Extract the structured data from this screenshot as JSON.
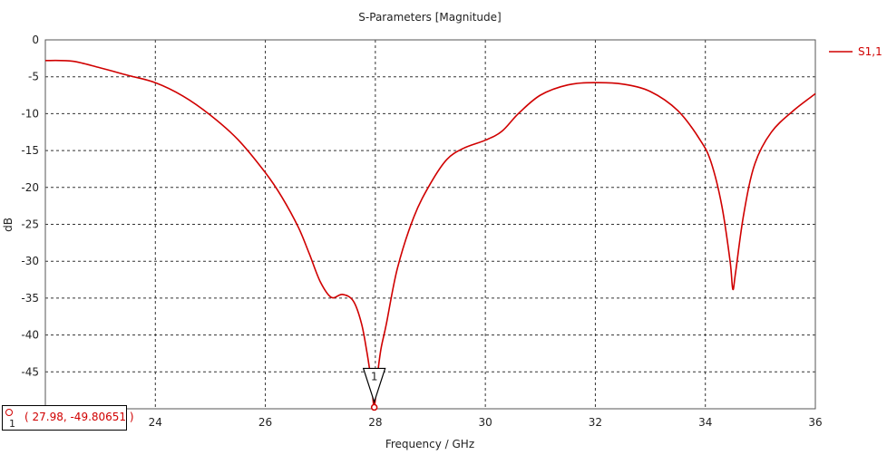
{
  "chart_data": {
    "type": "line",
    "title": "S-Parameters [Magnitude]",
    "xlabel": "Frequency / GHz",
    "ylabel": "dB",
    "xlim": [
      22,
      36
    ],
    "ylim": [
      -50,
      0
    ],
    "xticks": [
      24,
      26,
      28,
      30,
      32,
      34,
      36
    ],
    "yticks": [
      0,
      -5,
      -10,
      -15,
      -20,
      -25,
      -30,
      -35,
      -40,
      -45
    ],
    "grid": true,
    "legend": "top-right",
    "series": [
      {
        "name": "S1,1",
        "color": "#d00000",
        "x": [
          22,
          22.5,
          23,
          23.5,
          24,
          24.5,
          25,
          25.5,
          26,
          26.3,
          26.6,
          26.8,
          27,
          27.2,
          27.4,
          27.6,
          27.75,
          27.85,
          27.93,
          27.98,
          28.03,
          28.1,
          28.2,
          28.4,
          28.7,
          29,
          29.3,
          29.6,
          30,
          30.3,
          30.6,
          31,
          31.5,
          32,
          32.5,
          33,
          33.5,
          33.9,
          34.1,
          34.3,
          34.45,
          34.5,
          34.55,
          34.7,
          34.9,
          35.2,
          35.6,
          36
        ],
        "y": [
          -2.8,
          -2.9,
          -3.8,
          -4.8,
          -5.8,
          -7.6,
          -10.2,
          -13.5,
          -18.0,
          -21.3,
          -25.4,
          -29,
          -32.8,
          -34.9,
          -34.5,
          -35.4,
          -38.5,
          -42.5,
          -46.5,
          -49.80651,
          -46,
          -42,
          -38.5,
          -31,
          -24,
          -19.5,
          -16.2,
          -14.7,
          -13.6,
          -12.4,
          -10.0,
          -7.5,
          -6.1,
          -5.8,
          -6.0,
          -7.0,
          -9.6,
          -13.5,
          -16.5,
          -22.5,
          -30.0,
          -33.8,
          -31.5,
          -23.5,
          -16.8,
          -12.5,
          -9.6,
          -7.3
        ]
      }
    ],
    "marker": {
      "index": "1",
      "x": 27.98,
      "y": -49.80651,
      "label": "( 27.98, -49.80651 )"
    }
  }
}
